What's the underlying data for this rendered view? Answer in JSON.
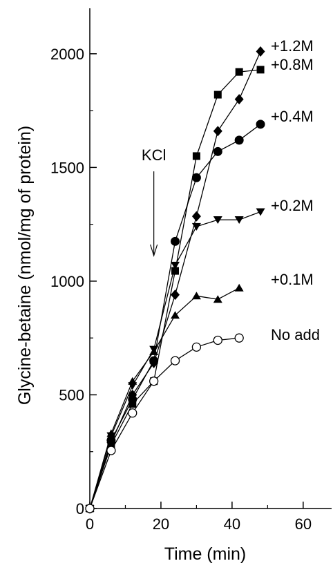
{
  "chart_data": {
    "type": "line",
    "title": "",
    "xlabel": "Time (min)",
    "ylabel": "Glycine-betaine (nmol/mg of protein)",
    "xlim": [
      0,
      68
    ],
    "ylim": [
      0,
      2200
    ],
    "xticks": [
      0,
      20,
      40,
      60
    ],
    "yticks": [
      0,
      500,
      1000,
      1500,
      2000
    ],
    "xtick_labels": [
      "0",
      "20",
      "40",
      "60"
    ],
    "ytick_labels": [
      "0",
      "500",
      "1000",
      "1500",
      "2000"
    ],
    "grid": false,
    "legend": "inline labels at right end of each series",
    "annotation": {
      "text": "KCl",
      "arrow_x": 18,
      "arrow_from_y": 1480,
      "arrow_to_y": 1100
    },
    "series": [
      {
        "name": "+1.2M",
        "marker": "diamond",
        "color": "#000000",
        "x": [
          0,
          6,
          12,
          18,
          24,
          30,
          36,
          42,
          48
        ],
        "y": [
          0,
          290,
          500,
          640,
          940,
          1285,
          1660,
          1800,
          2010
        ]
      },
      {
        "name": "+0.8M",
        "marker": "square",
        "color": "#000000",
        "x": [
          0,
          6,
          12,
          18,
          24,
          30,
          36,
          42,
          48
        ],
        "y": [
          0,
          280,
          460,
          560,
          1045,
          1550,
          1820,
          1920,
          1930
        ]
      },
      {
        "name": "+0.4M",
        "marker": "circle",
        "color": "#000000",
        "x": [
          0,
          6,
          12,
          18,
          24,
          30,
          36,
          42,
          48
        ],
        "y": [
          0,
          300,
          480,
          650,
          1175,
          1455,
          1570,
          1620,
          1690
        ]
      },
      {
        "name": "+0.2M",
        "marker": "triangle-down",
        "color": "#000000",
        "x": [
          0,
          6,
          12,
          18,
          24,
          30,
          36,
          42,
          48
        ],
        "y": [
          0,
          320,
          540,
          700,
          1070,
          1240,
          1270,
          1270,
          1305
        ]
      },
      {
        "name": "+0.1M",
        "marker": "triangle-up",
        "color": "#000000",
        "x": [
          0,
          6,
          12,
          18,
          24,
          30,
          36,
          42
        ],
        "y": [
          0,
          330,
          560,
          690,
          850,
          935,
          920,
          970
        ]
      },
      {
        "name": "No add",
        "marker": "open-circle",
        "color": "#000000",
        "x": [
          0,
          6,
          12,
          18,
          24,
          30,
          36,
          42
        ],
        "y": [
          0,
          255,
          420,
          560,
          650,
          710,
          740,
          750
        ]
      }
    ]
  }
}
